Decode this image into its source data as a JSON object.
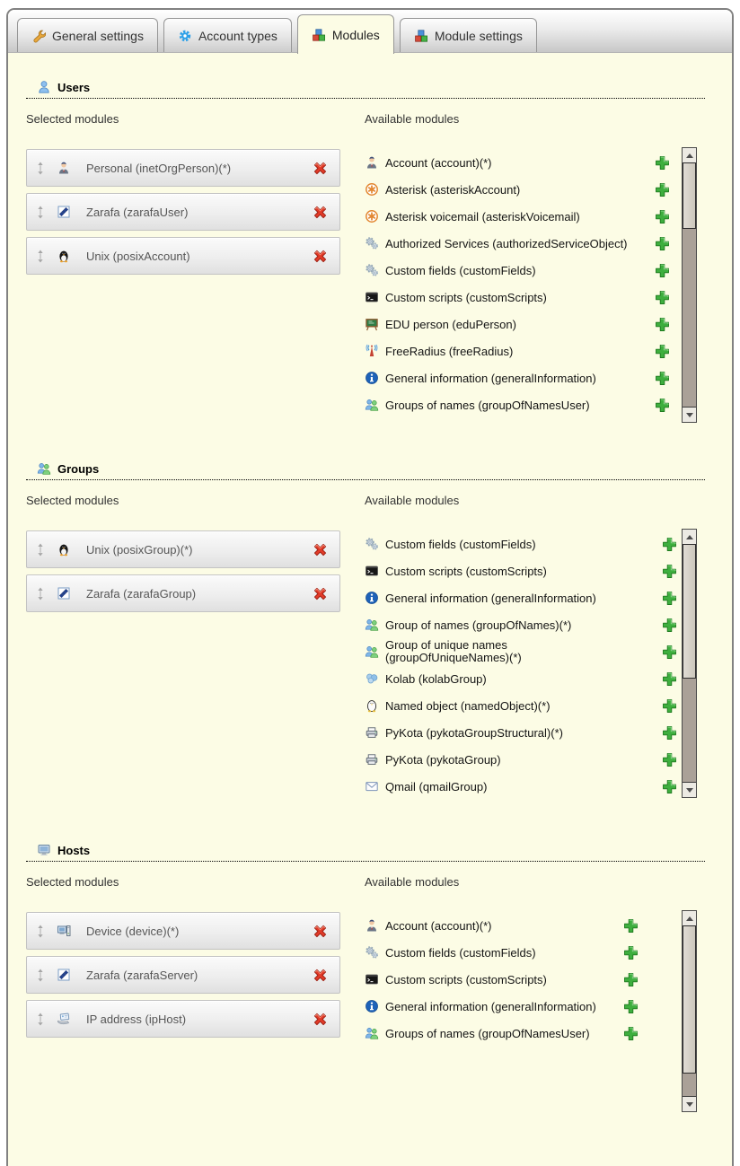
{
  "tabs": [
    {
      "label": "General settings",
      "icon": "wrench-icon",
      "active": false
    },
    {
      "label": "Account types",
      "icon": "gear-icon",
      "active": false
    },
    {
      "label": "Modules",
      "icon": "modules-icon",
      "active": true
    },
    {
      "label": "Module settings",
      "icon": "modules-icon",
      "active": false
    }
  ],
  "column_labels": {
    "selected": "Selected modules",
    "available": "Available modules"
  },
  "sections": [
    {
      "id": "users",
      "title": "Users",
      "icon": "user-icon",
      "selected": [
        {
          "label": "Personal (inetOrgPerson)(*)",
          "icon": "person-suit-icon"
        },
        {
          "label": "Zarafa (zarafaUser)",
          "icon": "zarafa-icon"
        },
        {
          "label": "Unix (posixAccount)",
          "icon": "tux-icon"
        }
      ],
      "available": [
        {
          "label": "Account (account)(*)",
          "icon": "person-suit-icon"
        },
        {
          "label": "Asterisk (asteriskAccount)",
          "icon": "asterisk-icon"
        },
        {
          "label": "Asterisk voicemail (asteriskVoicemail)",
          "icon": "asterisk-icon"
        },
        {
          "label": "Authorized Services (authorizedServiceObject)",
          "icon": "gears-icon"
        },
        {
          "label": "Custom fields (customFields)",
          "icon": "gears-icon"
        },
        {
          "label": "Custom scripts (customScripts)",
          "icon": "terminal-icon"
        },
        {
          "label": "EDU person (eduPerson)",
          "icon": "blackboard-icon"
        },
        {
          "label": "FreeRadius (freeRadius)",
          "icon": "antenna-icon"
        },
        {
          "label": "General information (generalInformation)",
          "icon": "info-icon"
        },
        {
          "label": "Groups of names (groupOfNamesUser)",
          "icon": "group-icon"
        }
      ]
    },
    {
      "id": "groups",
      "title": "Groups",
      "icon": "group-icon",
      "selected": [
        {
          "label": "Unix (posixGroup)(*)",
          "icon": "tux-icon"
        },
        {
          "label": "Zarafa (zarafaGroup)",
          "icon": "zarafa-icon"
        }
      ],
      "available": [
        {
          "label": "Custom fields (customFields)",
          "icon": "gears-icon"
        },
        {
          "label": "Custom scripts (customScripts)",
          "icon": "terminal-icon"
        },
        {
          "label": "General information (generalInformation)",
          "icon": "info-icon"
        },
        {
          "label": "Group of names (groupOfNames)(*)",
          "icon": "group-icon"
        },
        {
          "label": "Group of unique names (groupOfUniqueNames)(*)",
          "icon": "group-icon",
          "two_line": true
        },
        {
          "label": "Kolab (kolabGroup)",
          "icon": "kolab-icon"
        },
        {
          "label": "Named object (namedObject)(*)",
          "icon": "tux-outline-icon"
        },
        {
          "label": "PyKota (pykotaGroupStructural)(*)",
          "icon": "printer-icon"
        },
        {
          "label": "PyKota (pykotaGroup)",
          "icon": "printer-icon"
        },
        {
          "label": "Qmail (qmailGroup)",
          "icon": "mail-icon"
        }
      ]
    },
    {
      "id": "hosts",
      "title": "Hosts",
      "icon": "computer-icon",
      "selected": [
        {
          "label": "Device (device)(*)",
          "icon": "device-icon"
        },
        {
          "label": "Zarafa (zarafaServer)",
          "icon": "zarafa-icon"
        },
        {
          "label": "IP address (ipHost)",
          "icon": "ip-icon"
        }
      ],
      "available": [
        {
          "label": "Account (account)(*)",
          "icon": "person-suit-icon"
        },
        {
          "label": "Custom fields (customFields)",
          "icon": "gears-icon"
        },
        {
          "label": "Custom scripts (customScripts)",
          "icon": "terminal-icon"
        },
        {
          "label": "General information (generalInformation)",
          "icon": "info-icon"
        },
        {
          "label": "Groups of names (groupOfNamesUser)",
          "icon": "group-icon"
        }
      ]
    }
  ],
  "colors": {
    "page_background": "#fcfce5",
    "add_button_green": "#3eae3e",
    "remove_button_red": "#e23b28"
  }
}
